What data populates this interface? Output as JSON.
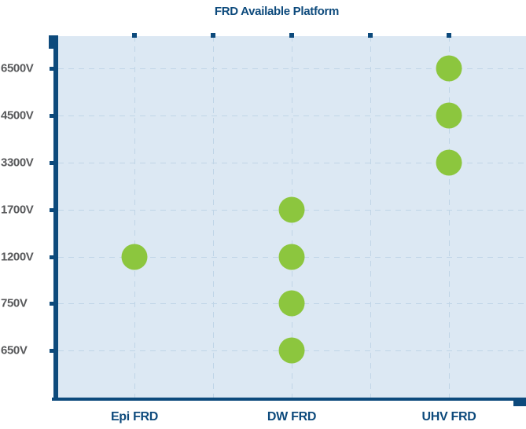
{
  "chart_data": {
    "type": "scatter",
    "title": "FRD Available Platform",
    "x_categories": [
      "Epi FRD",
      "DW FRD",
      "UHV FRD"
    ],
    "y_categories": [
      "6500V",
      "4500V",
      "3300V",
      "1700V",
      "1200V",
      "750V",
      "650V"
    ],
    "points": [
      {
        "platform": "Epi FRD",
        "voltage": "1200V"
      },
      {
        "platform": "DW FRD",
        "voltage": "1700V"
      },
      {
        "platform": "DW FRD",
        "voltage": "1200V"
      },
      {
        "platform": "DW FRD",
        "voltage": "750V"
      },
      {
        "platform": "DW FRD",
        "voltage": "650V"
      },
      {
        "platform": "UHV FRD",
        "voltage": "6500V"
      },
      {
        "platform": "UHV FRD",
        "voltage": "4500V"
      },
      {
        "platform": "UHV FRD",
        "voltage": "3300V"
      }
    ],
    "legend": "none",
    "grid": {
      "horizontal": "dashed",
      "vertical": "dashed"
    },
    "colors": {
      "marker": "#8CC63E",
      "axis": "#0D4A7C",
      "title_text": "#0D4A7C",
      "x_label_text": "#0D4A7C",
      "y_label_text": "#58595B",
      "plot_background": "#DCE8F3",
      "gridline": "#C0D5E7"
    }
  }
}
